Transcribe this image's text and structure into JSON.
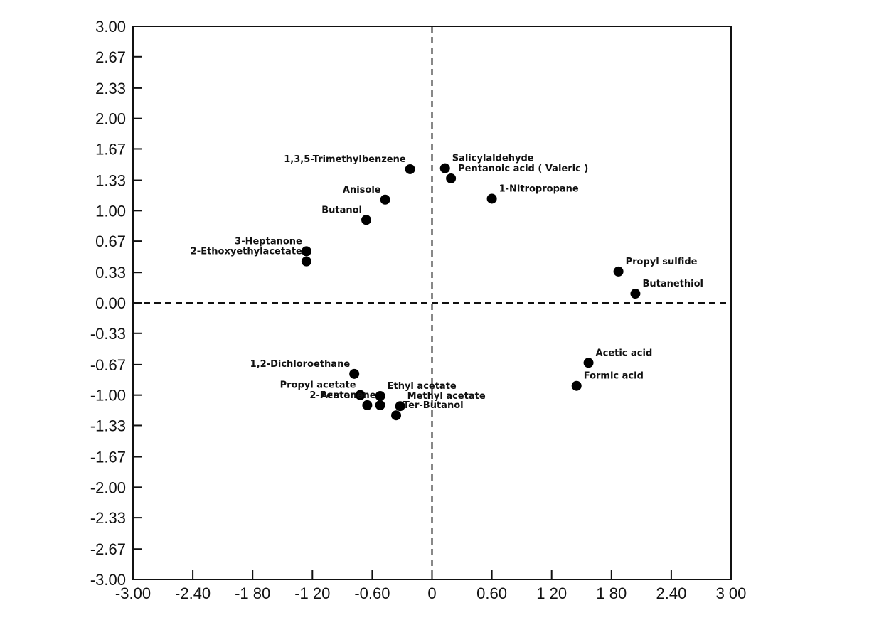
{
  "chart_data": {
    "type": "scatter",
    "title": "",
    "xlabel": "",
    "ylabel": "",
    "xlim": [
      -3.0,
      3.0
    ],
    "ylim": [
      -3.0,
      3.0
    ],
    "grid": false,
    "zero_lines": "dashed",
    "x_ticks": [
      -3.0,
      -2.4,
      -1.8,
      -1.2,
      -0.6,
      0,
      0.6,
      1.2,
      1.8,
      2.4,
      3.0
    ],
    "x_tick_labels": [
      "-3.00",
      "-2.40",
      "-1 80",
      "-1 20",
      "-0.60",
      "0",
      "0.60",
      "1 20",
      "1 80",
      "2.40",
      "3 00"
    ],
    "y_ticks": [
      3.0,
      2.67,
      2.33,
      2.0,
      1.67,
      1.33,
      1.0,
      0.67,
      0.33,
      0.0,
      -0.33,
      -0.67,
      -1.0,
      -1.33,
      -1.67,
      -2.0,
      -2.33,
      -2.67,
      -3.0
    ],
    "y_tick_labels": [
      "3.00",
      "2.67",
      "2.33",
      "2.00",
      "1.67",
      "1.33",
      "1.00",
      "0.67",
      "0.33",
      "0.00",
      "-0.33",
      "-0.67",
      "-1.00",
      "-1.33",
      "-1.67",
      "-2.00",
      "-2.33",
      "-2.67",
      "-3.00"
    ],
    "points": [
      {
        "label": "1,3,5-Trimethylbenzene",
        "x": -0.22,
        "y": 1.45,
        "anchor": "end"
      },
      {
        "label": "Salicylaldehyde",
        "x": 0.13,
        "y": 1.46,
        "anchor": "start"
      },
      {
        "label": "Pentanoic acid ( Valeric )",
        "x": 0.19,
        "y": 1.35,
        "anchor": "start"
      },
      {
        "label": "Anisole",
        "x": -0.47,
        "y": 1.12,
        "anchor": "end"
      },
      {
        "label": "Butanol",
        "x": -0.66,
        "y": 0.9,
        "anchor": "end"
      },
      {
        "label": "1-Nitropropane",
        "x": 0.6,
        "y": 1.13,
        "anchor": "start"
      },
      {
        "label": "3-Heptanone",
        "x": -1.26,
        "y": 0.56,
        "anchor": "end"
      },
      {
        "label": "2-Ethoxyethylacetate",
        "x": -1.26,
        "y": 0.45,
        "anchor": "end"
      },
      {
        "label": "Propyl sulfide",
        "x": 1.87,
        "y": 0.34,
        "anchor": "start"
      },
      {
        "label": "Butanethiol",
        "x": 2.04,
        "y": 0.1,
        "anchor": "start"
      },
      {
        "label": "Acetic acid",
        "x": 1.57,
        "y": -0.65,
        "anchor": "start"
      },
      {
        "label": "Formic acid",
        "x": 1.45,
        "y": -0.9,
        "anchor": "start"
      },
      {
        "label": "1,2-Dichloroethane",
        "x": -0.78,
        "y": -0.77,
        "anchor": "end"
      },
      {
        "label": "Propyl acetate",
        "x": -0.72,
        "y": -1.0,
        "anchor": "end"
      },
      {
        "label": "Ethyl acetate",
        "x": -0.52,
        "y": -1.01,
        "anchor": "start"
      },
      {
        "label": "Acetone",
        "x": -0.65,
        "y": -1.11,
        "anchor": "end"
      },
      {
        "label": "2-Pentanone",
        "x": -0.52,
        "y": -1.11,
        "anchor": "end"
      },
      {
        "label": "Methyl acetate",
        "x": -0.32,
        "y": -1.12,
        "anchor": "start"
      },
      {
        "label": "Ter-Butanol",
        "x": -0.36,
        "y": -1.22,
        "anchor": "start"
      }
    ]
  }
}
